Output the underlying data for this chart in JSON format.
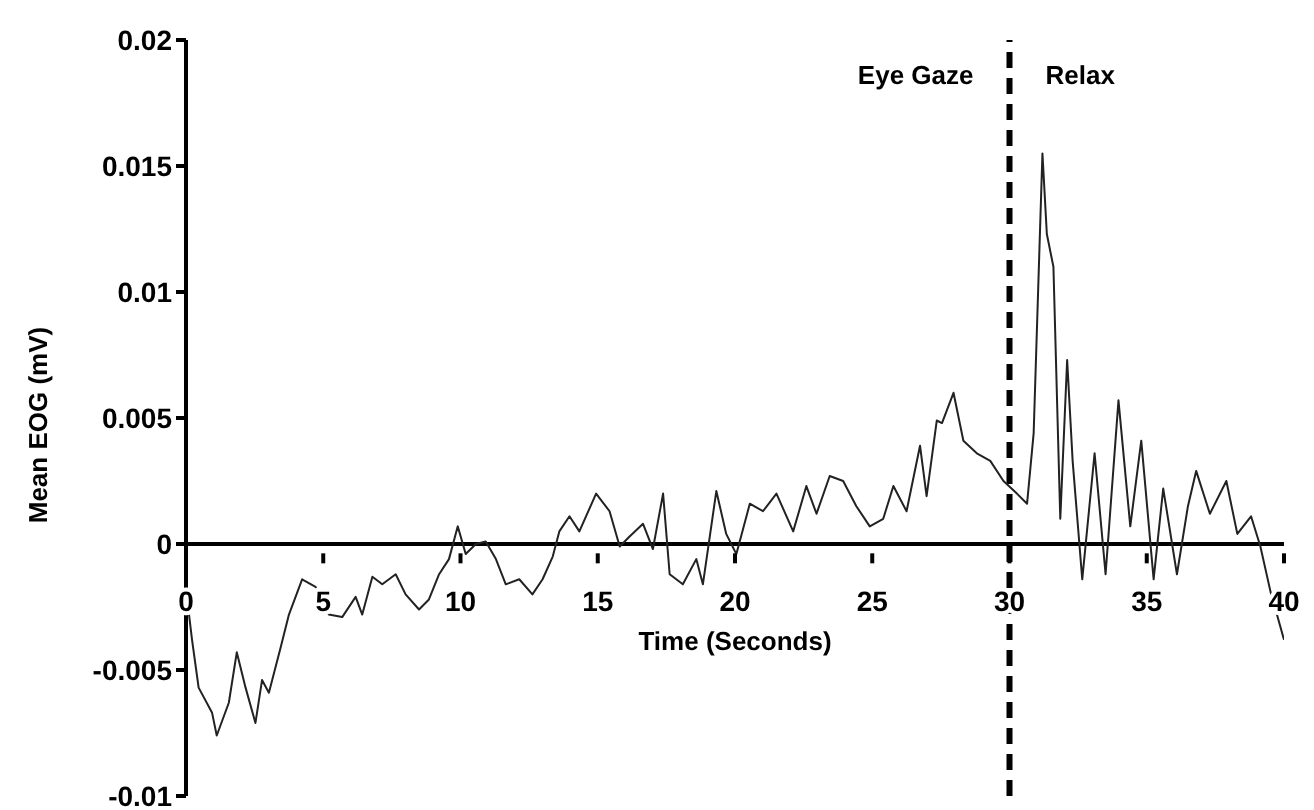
{
  "chart_data": {
    "type": "line",
    "xlabel": "Time (Seconds)",
    "ylabel": "Mean EOG (mV)",
    "annotations": [
      "Eye Gaze",
      "Relax"
    ],
    "ref_lines": [
      {
        "axis": "x",
        "value": 30,
        "color": "#000000",
        "line_style": "dashed"
      }
    ],
    "xlim": [
      0,
      40
    ],
    "xticks": [
      0,
      5,
      10,
      15,
      20,
      25,
      30,
      35,
      40
    ],
    "ylim": [
      -0.01,
      0.02
    ],
    "yticks": [
      -0.01,
      -0.005,
      0,
      0.005,
      0.01,
      0.015,
      0.02
    ],
    "marker": "none",
    "line_style": "solid",
    "series": [
      {
        "color": "#222222",
        "x": [
          0,
          0.22,
          0.46,
          0.95,
          1.12,
          1.56,
          1.85,
          2.17,
          2.53,
          2.77,
          3.02,
          3.45,
          3.75,
          4.23,
          4.72,
          5.2,
          5.69,
          6.18,
          6.42,
          6.79,
          7.15,
          7.64,
          8.0,
          8.49,
          8.85,
          9.22,
          9.58,
          9.9,
          10.19,
          10.56,
          10.92,
          11.29,
          11.65,
          12.14,
          12.62,
          12.99,
          13.36,
          13.6,
          13.97,
          14.33,
          14.94,
          15.43,
          15.8,
          16.16,
          16.65,
          17.01,
          17.38,
          17.62,
          18.1,
          18.59,
          18.83,
          19.32,
          19.68,
          20.05,
          20.54,
          21.02,
          21.51,
          22.12,
          22.6,
          22.97,
          23.45,
          23.94,
          24.42,
          24.91,
          25.4,
          25.77,
          26.25,
          26.74,
          26.98,
          27.35,
          27.54,
          27.96,
          28.32,
          28.81,
          29.3,
          29.78,
          30.27,
          30.64,
          30.88,
          31.2,
          31.36,
          31.6,
          31.85,
          32.1,
          32.3,
          32.65,
          33.1,
          33.5,
          33.97,
          34.4,
          34.8,
          35.25,
          35.6,
          36.1,
          36.5,
          36.8,
          37.3,
          37.9,
          38.3,
          38.8,
          39.14,
          39.51,
          40.0
        ],
        "values": [
          -0.0018,
          -0.0038,
          -0.0057,
          -0.0067,
          -0.0076,
          -0.0063,
          -0.0043,
          -0.0057,
          -0.0071,
          -0.0054,
          -0.0059,
          -0.0041,
          -0.0028,
          -0.0014,
          -0.0017,
          -0.0028,
          -0.0029,
          -0.0021,
          -0.0028,
          -0.0013,
          -0.0016,
          -0.0012,
          -0.002,
          -0.0026,
          -0.0022,
          -0.0012,
          -0.0006,
          0.0007,
          -0.0004,
          0,
          0.0001,
          -0.0006,
          -0.0016,
          -0.0014,
          -0.002,
          -0.0014,
          -0.0005,
          0.0005,
          0.0011,
          0.0005,
          0.002,
          0.0013,
          -0.0001,
          0.0003,
          0.0008,
          -0.0002,
          0.002,
          -0.0012,
          -0.0016,
          -0.0006,
          -0.0016,
          0.0021,
          0.0004,
          -0.0004,
          0.0016,
          0.0013,
          0.002,
          0.0005,
          0.0023,
          0.0012,
          0.0027,
          0.0025,
          0.0015,
          0.0007,
          0.001,
          0.0023,
          0.0013,
          0.0039,
          0.0019,
          0.0049,
          0.0048,
          0.006,
          0.0041,
          0.0036,
          0.0033,
          0.0025,
          0.002,
          0.0016,
          0.0044,
          0.0155,
          0.0123,
          0.011,
          0.001,
          0.0073,
          0.0033,
          -0.0014,
          0.0036,
          -0.0012,
          0.0057,
          0.0007,
          0.0041,
          -0.0014,
          0.0022,
          -0.0012,
          0.0015,
          0.0029,
          0.0012,
          0.0025,
          0.0004,
          0.0011,
          -0.0001,
          -0.0019,
          -0.0038
        ]
      }
    ]
  }
}
